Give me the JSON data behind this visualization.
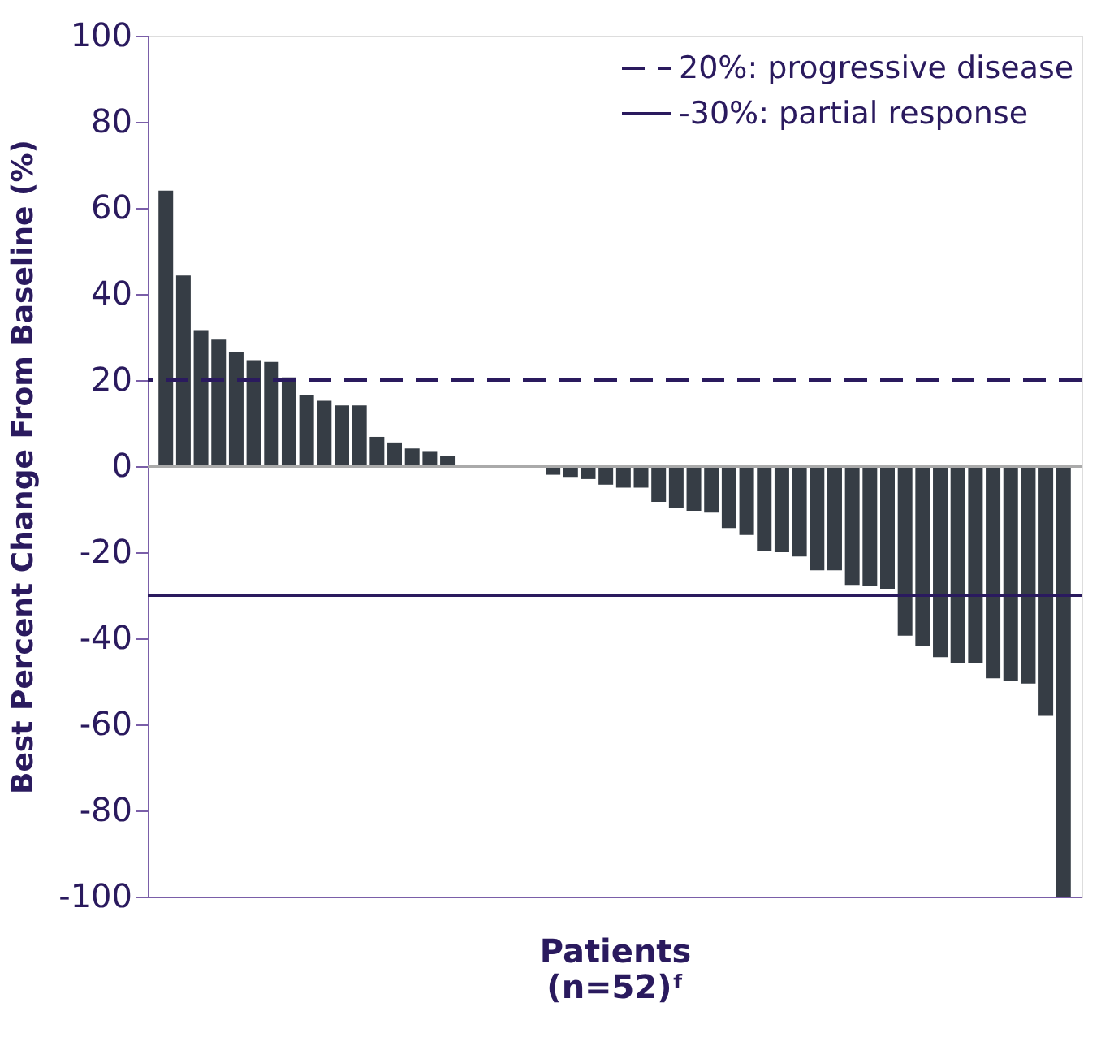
{
  "chart_data": {
    "type": "bar",
    "xlabel": "Patients\n(n=52)ᶠ",
    "ylabel": "Best Percent Change From Baseline (%)",
    "categories": [
      null,
      null,
      null,
      null,
      null,
      null,
      null,
      null,
      null,
      null,
      null,
      null,
      null,
      null,
      null,
      null,
      null,
      null,
      null,
      null,
      null,
      null,
      null,
      null,
      null,
      null,
      null,
      null,
      null,
      null,
      null,
      null,
      null,
      null,
      null,
      null,
      null,
      null,
      null,
      null,
      null,
      null,
      null,
      null,
      null,
      null,
      null,
      null,
      null,
      null,
      null,
      null
    ],
    "values": [
      64,
      44.3,
      31.6,
      29.4,
      26.5,
      24.6,
      24.2,
      20.6,
      16.5,
      15.2,
      14.1,
      14.1,
      6.8,
      5.5,
      4.1,
      3.5,
      2.3,
      0,
      0,
      0,
      0,
      0,
      -2,
      -2.5,
      -3,
      -4.3,
      -5,
      -5,
      -8.3,
      -9.7,
      -10.4,
      -10.8,
      -14.4,
      -16,
      -19.8,
      -20,
      -21,
      -24.2,
      -24.2,
      -27.6,
      -27.9,
      -28.5,
      -39.4,
      -41.7,
      -44.4,
      -45.7,
      -45.7,
      -49.3,
      -49.8,
      -50.5,
      -58,
      -100
    ],
    "color": "#363d45",
    "ylim": [
      -100,
      100
    ],
    "yticks": [
      -100,
      -80,
      -60,
      -40,
      -20,
      0,
      20,
      40,
      60,
      80,
      100
    ],
    "ref_lines": [
      {
        "axis": "y",
        "value": 20,
        "label": "20%: progressive disease",
        "color": "#2a1a5e",
        "line_style": "dashed"
      },
      {
        "axis": "y",
        "value": -30,
        "label": "-30%: partial response",
        "color": "#2a1a5e",
        "line_style": "solid"
      }
    ],
    "legend": "top right",
    "grid": false
  }
}
